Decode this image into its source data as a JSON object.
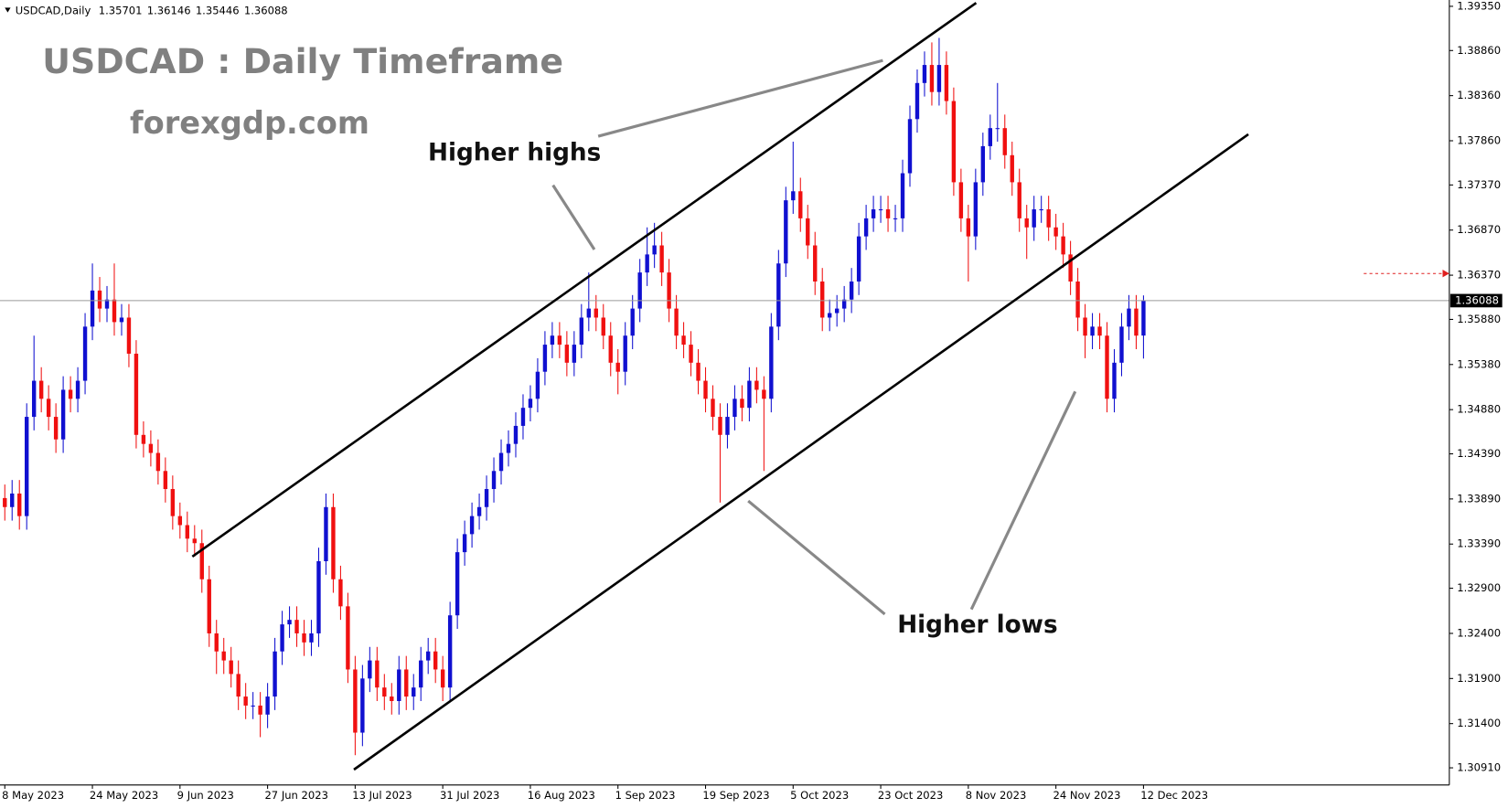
{
  "chart_data": {
    "type": "candlestick",
    "header": "USDCAD,Daily",
    "title": "USDCAD : Daily Timeframe",
    "subtitle": "forexgdp.com",
    "annotations": [
      "Higher highs",
      "Higher lows"
    ],
    "up_color": "#1010d0",
    "down_color": "#f01010",
    "ylim": [
      1.3072,
      1.3942
    ],
    "yticks": [
      {
        "value": 1.3091,
        "label": "1.30910"
      },
      {
        "value": 1.314,
        "label": "1.31400"
      },
      {
        "value": 1.319,
        "label": "1.31900"
      },
      {
        "value": 1.324,
        "label": "1.32400"
      },
      {
        "value": 1.329,
        "label": "1.32900"
      },
      {
        "value": 1.3339,
        "label": "1.33390"
      },
      {
        "value": 1.3389,
        "label": "1.33890"
      },
      {
        "value": 1.3439,
        "label": "1.34390"
      },
      {
        "value": 1.3488,
        "label": "1.34880"
      },
      {
        "value": 1.3538,
        "label": "1.35380"
      },
      {
        "value": 1.3588,
        "label": "1.35880"
      },
      {
        "value": 1.3637,
        "label": "1.36370"
      },
      {
        "value": 1.3687,
        "label": "1.36870"
      },
      {
        "value": 1.3737,
        "label": "1.37370"
      },
      {
        "value": 1.3786,
        "label": "1.37860"
      },
      {
        "value": 1.3836,
        "label": "1.38360"
      },
      {
        "value": 1.3886,
        "label": "1.38860"
      },
      {
        "value": 1.3935,
        "label": "1.39350"
      }
    ],
    "categories": [
      "8 May 2023",
      null,
      null,
      null,
      null,
      null,
      null,
      null,
      null,
      null,
      null,
      null,
      "24 May 2023",
      null,
      null,
      null,
      null,
      null,
      null,
      null,
      null,
      null,
      null,
      null,
      "9 Jun 2023",
      null,
      null,
      null,
      null,
      null,
      null,
      null,
      null,
      null,
      null,
      null,
      "27 Jun 2023",
      null,
      null,
      null,
      null,
      null,
      null,
      null,
      null,
      null,
      null,
      null,
      "13 Jul 2023",
      null,
      null,
      null,
      null,
      null,
      null,
      null,
      null,
      null,
      null,
      null,
      "31 Jul 2023",
      null,
      null,
      null,
      null,
      null,
      null,
      null,
      null,
      null,
      null,
      null,
      "16 Aug 2023",
      null,
      null,
      null,
      null,
      null,
      null,
      null,
      null,
      null,
      null,
      null,
      "1 Sep 2023",
      null,
      null,
      null,
      null,
      null,
      null,
      null,
      null,
      null,
      null,
      null,
      "19 Sep 2023",
      null,
      null,
      null,
      null,
      null,
      null,
      null,
      null,
      null,
      null,
      null,
      "5 Oct 2023",
      null,
      null,
      null,
      null,
      null,
      null,
      null,
      null,
      null,
      null,
      null,
      "23 Oct 2023",
      null,
      null,
      null,
      null,
      null,
      null,
      null,
      null,
      null,
      null,
      null,
      "8 Nov 2023",
      null,
      null,
      null,
      null,
      null,
      null,
      null,
      null,
      null,
      null,
      null,
      "24 Nov 2023",
      null,
      null,
      null,
      null,
      null,
      null,
      null,
      null,
      null,
      null,
      null,
      "12 Dec 2023"
    ],
    "open": [
      1.339,
      1.338,
      1.3395,
      1.337,
      1.348,
      1.352,
      1.35,
      1.348,
      1.3455,
      1.351,
      1.35,
      1.352,
      1.358,
      1.362,
      1.36,
      1.361,
      1.3585,
      1.359,
      1.355,
      1.346,
      1.345,
      1.344,
      1.342,
      1.34,
      1.337,
      1.336,
      1.3345,
      1.334,
      1.33,
      1.324,
      1.322,
      1.321,
      1.3195,
      1.317,
      1.316,
      1.316,
      1.315,
      1.317,
      1.322,
      1.325,
      1.3255,
      1.324,
      1.323,
      1.324,
      1.332,
      1.338,
      1.33,
      1.327,
      1.32,
      1.313,
      1.319,
      1.321,
      1.318,
      1.317,
      1.3165,
      1.32,
      1.317,
      1.318,
      1.321,
      1.322,
      1.32,
      1.318,
      1.326,
      1.333,
      1.335,
      1.337,
      1.338,
      1.34,
      1.342,
      1.344,
      1.345,
      1.347,
      1.349,
      1.35,
      1.353,
      1.356,
      1.357,
      1.356,
      1.354,
      1.356,
      1.359,
      1.36,
      1.359,
      1.357,
      1.354,
      1.353,
      1.357,
      1.36,
      1.364,
      1.366,
      1.367,
      1.364,
      1.36,
      1.357,
      1.356,
      1.354,
      1.352,
      1.35,
      1.348,
      1.346,
      1.348,
      1.35,
      1.349,
      1.352,
      1.351,
      1.35,
      1.358,
      1.365,
      1.372,
      1.373,
      1.37,
      1.367,
      1.363,
      1.359,
      1.3595,
      1.36,
      1.361,
      1.363,
      1.368,
      1.37,
      1.371,
      1.371,
      1.37,
      1.37,
      1.375,
      1.381,
      1.385,
      1.387,
      1.384,
      1.387,
      1.383,
      1.374,
      1.37,
      1.368,
      1.374,
      1.378,
      1.38,
      1.38,
      1.377,
      1.374,
      1.37,
      1.369,
      1.371,
      1.371,
      1.369,
      1.368,
      1.366,
      1.363,
      1.359,
      1.357,
      1.358,
      1.357,
      1.35,
      1.354,
      1.358,
      1.36,
      1.35701
    ],
    "high": [
      1.3405,
      1.341,
      1.341,
      1.3495,
      1.357,
      1.3535,
      1.3515,
      1.3495,
      1.3525,
      1.3525,
      1.3535,
      1.3595,
      1.365,
      1.3635,
      1.3625,
      1.365,
      1.3605,
      1.3605,
      1.3565,
      1.3475,
      1.3465,
      1.3455,
      1.3435,
      1.3415,
      1.3385,
      1.3375,
      1.336,
      1.3355,
      1.3315,
      1.3255,
      1.3235,
      1.3225,
      1.321,
      1.3185,
      1.3175,
      1.3175,
      1.3185,
      1.3235,
      1.3265,
      1.327,
      1.327,
      1.3255,
      1.3255,
      1.3335,
      1.3395,
      1.3395,
      1.3315,
      1.3285,
      1.3215,
      1.3205,
      1.3225,
      1.3225,
      1.3195,
      1.3185,
      1.3215,
      1.3215,
      1.3195,
      1.3225,
      1.3235,
      1.3235,
      1.3215,
      1.3275,
      1.3345,
      1.3365,
      1.3385,
      1.3395,
      1.3415,
      1.3435,
      1.3455,
      1.3465,
      1.3485,
      1.3505,
      1.3515,
      1.3545,
      1.3575,
      1.3585,
      1.3585,
      1.3575,
      1.3575,
      1.3605,
      1.364,
      1.3615,
      1.3605,
      1.3585,
      1.3555,
      1.3585,
      1.3615,
      1.3655,
      1.369,
      1.3695,
      1.3685,
      1.3655,
      1.3615,
      1.3585,
      1.3575,
      1.3555,
      1.3535,
      1.3515,
      1.3495,
      1.3495,
      1.3515,
      1.3515,
      1.3535,
      1.3535,
      1.3525,
      1.3595,
      1.3665,
      1.3735,
      1.3785,
      1.3745,
      1.3715,
      1.3685,
      1.3645,
      1.361,
      1.3615,
      1.3625,
      1.3645,
      1.3695,
      1.3715,
      1.3725,
      1.3725,
      1.3725,
      1.3715,
      1.3765,
      1.3825,
      1.3865,
      1.3885,
      1.3895,
      1.39,
      1.3885,
      1.3845,
      1.3755,
      1.3715,
      1.3755,
      1.3795,
      1.3815,
      1.385,
      1.3815,
      1.3785,
      1.3755,
      1.3715,
      1.3725,
      1.3725,
      1.3725,
      1.3705,
      1.3695,
      1.3675,
      1.3645,
      1.3605,
      1.3595,
      1.3595,
      1.3585,
      1.3555,
      1.3595,
      1.3615,
      1.3615,
      1.36146
    ],
    "low": [
      1.3365,
      1.3365,
      1.3355,
      1.3355,
      1.3465,
      1.3485,
      1.3465,
      1.344,
      1.344,
      1.3485,
      1.3485,
      1.3505,
      1.3565,
      1.3585,
      1.3585,
      1.357,
      1.357,
      1.3535,
      1.3445,
      1.3435,
      1.3425,
      1.3405,
      1.3385,
      1.3355,
      1.3345,
      1.333,
      1.3325,
      1.3285,
      1.3225,
      1.3195,
      1.3195,
      1.318,
      1.3155,
      1.3145,
      1.3145,
      1.3125,
      1.3135,
      1.3155,
      1.3205,
      1.3235,
      1.3225,
      1.3215,
      1.3215,
      1.3225,
      1.3305,
      1.3285,
      1.3255,
      1.3185,
      1.3105,
      1.3115,
      1.3175,
      1.3165,
      1.3155,
      1.315,
      1.315,
      1.3155,
      1.3155,
      1.3165,
      1.3195,
      1.3185,
      1.3165,
      1.3165,
      1.3245,
      1.3315,
      1.3335,
      1.3355,
      1.3365,
      1.3385,
      1.3405,
      1.3425,
      1.3435,
      1.3455,
      1.3475,
      1.3485,
      1.3515,
      1.3545,
      1.3545,
      1.3525,
      1.3525,
      1.3545,
      1.3575,
      1.3575,
      1.3555,
      1.3525,
      1.3505,
      1.3515,
      1.3555,
      1.3585,
      1.3625,
      1.3645,
      1.3625,
      1.3585,
      1.3555,
      1.3545,
      1.3525,
      1.3505,
      1.3485,
      1.3465,
      1.3385,
      1.3445,
      1.3465,
      1.3475,
      1.3475,
      1.3495,
      1.342,
      1.3485,
      1.3565,
      1.3635,
      1.3705,
      1.3685,
      1.3655,
      1.3615,
      1.3575,
      1.3575,
      1.358,
      1.3585,
      1.3595,
      1.3615,
      1.3665,
      1.3685,
      1.3695,
      1.3685,
      1.3685,
      1.3685,
      1.3735,
      1.3795,
      1.3835,
      1.3825,
      1.3825,
      1.3815,
      1.3725,
      1.3685,
      1.363,
      1.3665,
      1.3725,
      1.3765,
      1.3785,
      1.3755,
      1.3725,
      1.3685,
      1.3655,
      1.3675,
      1.3695,
      1.3675,
      1.3665,
      1.3645,
      1.3615,
      1.3575,
      1.3545,
      1.3555,
      1.3555,
      1.3485,
      1.3485,
      1.3525,
      1.3565,
      1.3555,
      1.35446
    ],
    "close": [
      1.338,
      1.3395,
      1.337,
      1.348,
      1.352,
      1.35,
      1.348,
      1.3455,
      1.351,
      1.35,
      1.352,
      1.358,
      1.362,
      1.36,
      1.361,
      1.3585,
      1.359,
      1.355,
      1.346,
      1.345,
      1.344,
      1.342,
      1.34,
      1.337,
      1.336,
      1.3345,
      1.334,
      1.33,
      1.324,
      1.322,
      1.321,
      1.3195,
      1.317,
      1.316,
      1.316,
      1.315,
      1.317,
      1.322,
      1.325,
      1.3255,
      1.324,
      1.323,
      1.324,
      1.332,
      1.338,
      1.33,
      1.327,
      1.32,
      1.313,
      1.319,
      1.321,
      1.318,
      1.317,
      1.3165,
      1.32,
      1.317,
      1.318,
      1.321,
      1.322,
      1.32,
      1.318,
      1.326,
      1.333,
      1.335,
      1.337,
      1.338,
      1.34,
      1.342,
      1.344,
      1.345,
      1.347,
      1.349,
      1.35,
      1.353,
      1.356,
      1.357,
      1.356,
      1.354,
      1.356,
      1.359,
      1.36,
      1.359,
      1.357,
      1.354,
      1.353,
      1.357,
      1.36,
      1.364,
      1.366,
      1.367,
      1.364,
      1.36,
      1.357,
      1.356,
      1.354,
      1.352,
      1.35,
      1.348,
      1.346,
      1.348,
      1.35,
      1.349,
      1.352,
      1.351,
      1.35,
      1.358,
      1.365,
      1.372,
      1.373,
      1.37,
      1.367,
      1.363,
      1.359,
      1.3595,
      1.36,
      1.361,
      1.363,
      1.368,
      1.37,
      1.371,
      1.371,
      1.37,
      1.37,
      1.375,
      1.381,
      1.385,
      1.387,
      1.384,
      1.387,
      1.383,
      1.374,
      1.37,
      1.368,
      1.374,
      1.378,
      1.38,
      1.38,
      1.377,
      1.374,
      1.37,
      1.369,
      1.371,
      1.371,
      1.369,
      1.368,
      1.366,
      1.363,
      1.359,
      1.357,
      1.358,
      1.357,
      1.35,
      1.354,
      1.358,
      1.36,
      1.357,
      1.36088
    ]
  }
}
